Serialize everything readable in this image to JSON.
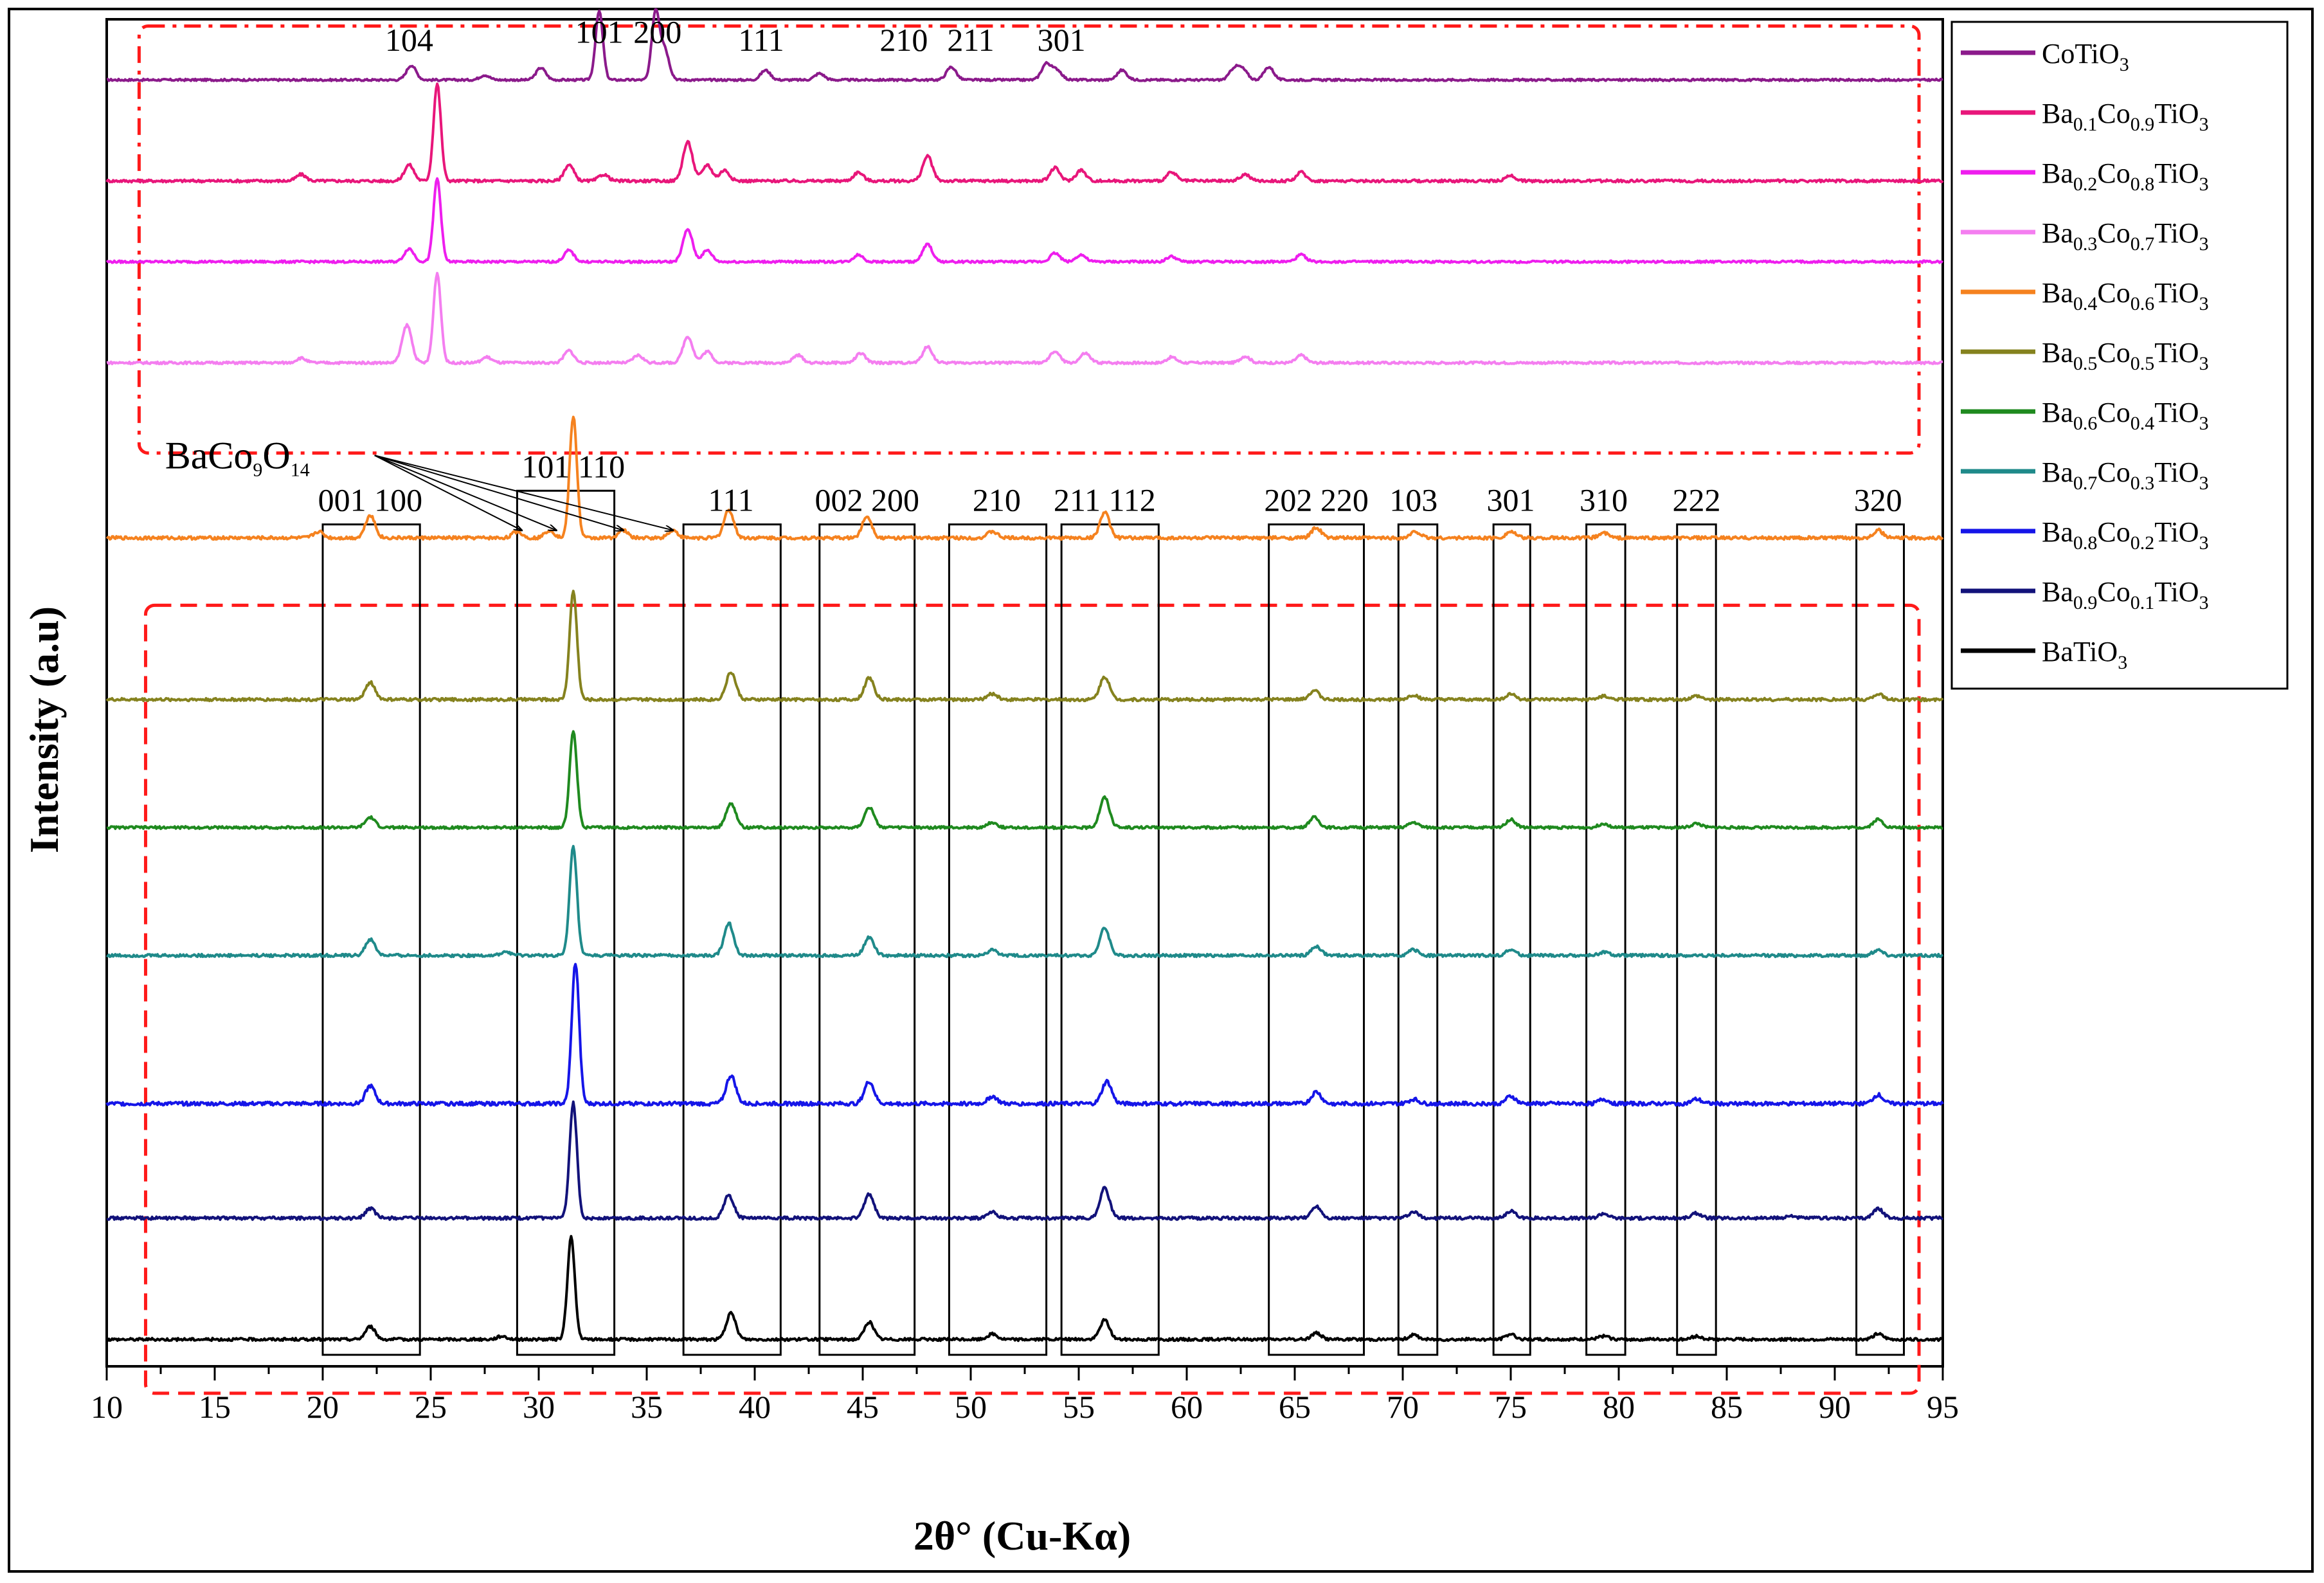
{
  "chart_data": {
    "type": "line",
    "title": "",
    "xlabel": "2θ° (Cu-Kα)",
    "ylabel": "Intensity (a.u)",
    "xlim": [
      10,
      95
    ],
    "x_ticks": [
      "10",
      "15",
      "20",
      "25",
      "30",
      "35",
      "40",
      "45",
      "50",
      "55",
      "60",
      "65",
      "70",
      "75",
      "80",
      "85",
      "90",
      "95"
    ],
    "y_ticks_shown": false,
    "legend_position": "top-right, outside plot area",
    "series": [
      {
        "name_parts": [
          [
            "CoTiO",
            ""
          ],
          [
            "3",
            "sub"
          ]
        ],
        "color": "#8b1a8b",
        "baseline_rel": 0.955,
        "scale": 0.06,
        "peaks": [
          [
            24.1,
            0.18
          ],
          [
            27.5,
            0.06
          ],
          [
            30.1,
            0.15
          ],
          [
            32.8,
            0.85
          ],
          [
            35.4,
            0.8
          ],
          [
            35.8,
            0.4
          ],
          [
            40.5,
            0.12
          ],
          [
            43.0,
            0.08
          ],
          [
            49.1,
            0.16
          ],
          [
            53.5,
            0.2
          ],
          [
            54.0,
            0.12
          ],
          [
            57.0,
            0.12
          ],
          [
            62.2,
            0.14
          ],
          [
            62.6,
            0.12
          ],
          [
            63.8,
            0.16
          ]
        ]
      },
      {
        "name_parts": [
          [
            "Ba",
            ""
          ],
          [
            "0.1",
            "sub"
          ],
          [
            "Co",
            ""
          ],
          [
            "0.9",
            "sub"
          ],
          [
            "TiO",
            ""
          ],
          [
            "3",
            "sub"
          ]
        ],
        "color": "#e8167a",
        "baseline_rel": 0.88,
        "scale": 0.08,
        "peaks": [
          [
            19.0,
            0.06
          ],
          [
            24.0,
            0.15
          ],
          [
            25.3,
            0.9
          ],
          [
            31.4,
            0.15
          ],
          [
            33.0,
            0.06
          ],
          [
            36.9,
            0.36
          ],
          [
            37.8,
            0.15
          ],
          [
            38.6,
            0.1
          ],
          [
            44.8,
            0.08
          ],
          [
            48.0,
            0.23
          ],
          [
            53.9,
            0.12
          ],
          [
            55.1,
            0.1
          ],
          [
            59.3,
            0.08
          ],
          [
            62.7,
            0.06
          ],
          [
            65.3,
            0.08
          ],
          [
            75.0,
            0.05
          ]
        ]
      },
      {
        "name_parts": [
          [
            "Ba",
            ""
          ],
          [
            "0.2",
            "sub"
          ],
          [
            "Co",
            ""
          ],
          [
            "0.8",
            "sub"
          ],
          [
            "TiO",
            ""
          ],
          [
            "3",
            "sub"
          ]
        ],
        "color": "#ee1eee",
        "baseline_rel": 0.82,
        "scale": 0.065,
        "peaks": [
          [
            24.0,
            0.15
          ],
          [
            25.3,
            0.95
          ],
          [
            31.4,
            0.13
          ],
          [
            36.9,
            0.37
          ],
          [
            37.8,
            0.13
          ],
          [
            44.8,
            0.08
          ],
          [
            48.0,
            0.2
          ],
          [
            53.9,
            0.1
          ],
          [
            55.1,
            0.08
          ],
          [
            59.3,
            0.06
          ],
          [
            65.3,
            0.08
          ]
        ]
      },
      {
        "name_parts": [
          [
            "Ba",
            ""
          ],
          [
            "0.3",
            "sub"
          ],
          [
            "Co",
            ""
          ],
          [
            "0.7",
            "sub"
          ],
          [
            "TiO",
            ""
          ],
          [
            "3",
            "sub"
          ]
        ],
        "color": "#f47ef0",
        "baseline_rel": 0.745,
        "scale": 0.07,
        "peaks": [
          [
            19.0,
            0.05
          ],
          [
            23.9,
            0.4
          ],
          [
            25.3,
            0.95
          ],
          [
            27.6,
            0.06
          ],
          [
            31.4,
            0.13
          ],
          [
            34.6,
            0.08
          ],
          [
            36.9,
            0.28
          ],
          [
            37.8,
            0.12
          ],
          [
            42.0,
            0.08
          ],
          [
            44.9,
            0.1
          ],
          [
            48.0,
            0.17
          ],
          [
            53.9,
            0.12
          ],
          [
            55.3,
            0.1
          ],
          [
            59.3,
            0.06
          ],
          [
            62.7,
            0.07
          ],
          [
            65.3,
            0.08
          ]
        ]
      },
      {
        "name_parts": [
          [
            "Ba",
            ""
          ],
          [
            "0.4",
            "sub"
          ],
          [
            "Co",
            ""
          ],
          [
            "0.6",
            "sub"
          ],
          [
            "TiO",
            ""
          ],
          [
            "3",
            "sub"
          ]
        ],
        "color": "#f5821f",
        "baseline_rel": 0.615,
        "scale": 0.095,
        "peaks": [
          [
            19.8,
            0.05
          ],
          [
            22.2,
            0.18
          ],
          [
            29.0,
            0.05
          ],
          [
            30.5,
            0.06
          ],
          [
            31.6,
            0.95
          ],
          [
            33.9,
            0.06
          ],
          [
            36.2,
            0.06
          ],
          [
            38.8,
            0.22
          ],
          [
            45.2,
            0.17
          ],
          [
            51.0,
            0.05
          ],
          [
            56.2,
            0.2
          ],
          [
            66.0,
            0.08
          ],
          [
            70.6,
            0.05
          ],
          [
            75.0,
            0.05
          ],
          [
            79.3,
            0.04
          ],
          [
            92.0,
            0.06
          ]
        ]
      },
      {
        "name_parts": [
          [
            "Ba",
            ""
          ],
          [
            "0.5",
            "sub"
          ],
          [
            "Co",
            ""
          ],
          [
            "0.5",
            "sub"
          ],
          [
            "TiO",
            ""
          ],
          [
            "3",
            "sub"
          ]
        ],
        "color": "#85821e",
        "baseline_rel": 0.495,
        "scale": 0.085,
        "peaks": [
          [
            22.2,
            0.15
          ],
          [
            31.6,
            0.95
          ],
          [
            38.9,
            0.24
          ],
          [
            45.3,
            0.19
          ],
          [
            51.0,
            0.05
          ],
          [
            56.2,
            0.2
          ],
          [
            65.9,
            0.08
          ],
          [
            70.5,
            0.04
          ],
          [
            75.0,
            0.05
          ],
          [
            79.3,
            0.03
          ],
          [
            83.6,
            0.03
          ],
          [
            92.0,
            0.05
          ]
        ]
      },
      {
        "name_parts": [
          [
            "Ba",
            ""
          ],
          [
            "0.6",
            "sub"
          ],
          [
            "Co",
            ""
          ],
          [
            "0.4",
            "sub"
          ],
          [
            "TiO",
            ""
          ],
          [
            "3",
            "sub"
          ]
        ],
        "color": "#1f8a1f",
        "baseline_rel": 0.4,
        "scale": 0.075,
        "peaks": [
          [
            22.2,
            0.1
          ],
          [
            31.6,
            0.95
          ],
          [
            38.9,
            0.24
          ],
          [
            45.3,
            0.2
          ],
          [
            51.0,
            0.05
          ],
          [
            56.2,
            0.3
          ],
          [
            65.9,
            0.1
          ],
          [
            70.5,
            0.05
          ],
          [
            75.0,
            0.08
          ],
          [
            79.3,
            0.04
          ],
          [
            83.6,
            0.04
          ],
          [
            92.0,
            0.08
          ]
        ]
      },
      {
        "name_parts": [
          [
            "Ba",
            ""
          ],
          [
            "0.7",
            "sub"
          ],
          [
            "Co",
            ""
          ],
          [
            "0.3",
            "sub"
          ],
          [
            "TiO",
            ""
          ],
          [
            "3",
            "sub"
          ]
        ],
        "color": "#1f8a8a",
        "baseline_rel": 0.305,
        "scale": 0.085,
        "peaks": [
          [
            22.2,
            0.14
          ],
          [
            28.5,
            0.03
          ],
          [
            31.6,
            0.95
          ],
          [
            38.8,
            0.28
          ],
          [
            45.3,
            0.16
          ],
          [
            51.0,
            0.05
          ],
          [
            56.2,
            0.24
          ],
          [
            66.0,
            0.08
          ],
          [
            70.5,
            0.05
          ],
          [
            75.0,
            0.05
          ],
          [
            79.3,
            0.03
          ],
          [
            92.0,
            0.05
          ]
        ]
      },
      {
        "name_parts": [
          [
            "Ba",
            ""
          ],
          [
            "0.8",
            "sub"
          ],
          [
            "Co",
            ""
          ],
          [
            "0.2",
            "sub"
          ],
          [
            "TiO",
            ""
          ],
          [
            "3",
            "sub"
          ]
        ],
        "color": "#1515e8",
        "baseline_rel": 0.195,
        "scale": 0.11,
        "peaks": [
          [
            22.2,
            0.12
          ],
          [
            31.7,
            0.95
          ],
          [
            38.9,
            0.19
          ],
          [
            45.3,
            0.15
          ],
          [
            51.0,
            0.05
          ],
          [
            56.3,
            0.15
          ],
          [
            66.0,
            0.08
          ],
          [
            70.5,
            0.03
          ],
          [
            75.0,
            0.05
          ],
          [
            79.3,
            0.03
          ],
          [
            83.6,
            0.03
          ],
          [
            92.0,
            0.06
          ]
        ]
      },
      {
        "name_parts": [
          [
            "Ba",
            ""
          ],
          [
            "0.9",
            "sub"
          ],
          [
            "Co",
            ""
          ],
          [
            "0.1",
            "sub"
          ],
          [
            "TiO",
            ""
          ],
          [
            "3",
            "sub"
          ]
        ],
        "color": "#12127a",
        "baseline_rel": 0.11,
        "scale": 0.09,
        "peaks": [
          [
            22.2,
            0.08
          ],
          [
            31.6,
            0.95
          ],
          [
            38.8,
            0.19
          ],
          [
            45.3,
            0.2
          ],
          [
            51.0,
            0.05
          ],
          [
            56.2,
            0.25
          ],
          [
            66.0,
            0.1
          ],
          [
            70.5,
            0.05
          ],
          [
            75.0,
            0.06
          ],
          [
            79.3,
            0.04
          ],
          [
            83.6,
            0.04
          ],
          [
            88.0,
            0.02
          ],
          [
            92.0,
            0.08
          ]
        ]
      },
      {
        "name_parts": [
          [
            "BaTiO",
            ""
          ],
          [
            "3",
            "sub"
          ]
        ],
        "color": "#000000",
        "baseline_rel": 0.02,
        "scale": 0.08,
        "peaks": [
          [
            22.2,
            0.12
          ],
          [
            28.3,
            0.03
          ],
          [
            31.5,
            0.95
          ],
          [
            38.9,
            0.24
          ],
          [
            45.3,
            0.16
          ],
          [
            51.0,
            0.05
          ],
          [
            56.2,
            0.18
          ],
          [
            66.0,
            0.06
          ],
          [
            70.5,
            0.04
          ],
          [
            75.0,
            0.05
          ],
          [
            79.3,
            0.03
          ],
          [
            83.6,
            0.03
          ],
          [
            92.0,
            0.05
          ]
        ]
      }
    ],
    "annotations": {
      "top_hkl": [
        {
          "text": "104",
          "x": 24.0
        },
        {
          "text": "101",
          "x": 32.8
        },
        {
          "text": "200",
          "x": 35.5
        },
        {
          "text": "111",
          "x": 40.3
        },
        {
          "text": "210",
          "x": 46.9
        },
        {
          "text": "211",
          "x": 50.0
        },
        {
          "text": "301",
          "x": 54.2
        }
      ],
      "bottom_hkl": [
        {
          "text": "001 100",
          "x": 22.2
        },
        {
          "text": "101 110",
          "x": 31.6
        },
        {
          "text": "111",
          "x": 38.9
        },
        {
          "text": "002 200",
          "x": 45.2
        },
        {
          "text": "210",
          "x": 51.2
        },
        {
          "text": "211 112",
          "x": 56.2
        },
        {
          "text": "202 220",
          "x": 66.0
        },
        {
          "text": "103",
          "x": 70.5
        },
        {
          "text": "301",
          "x": 75.0
        },
        {
          "text": "310",
          "x": 79.3
        },
        {
          "text": "222",
          "x": 83.6
        },
        {
          "text": "320",
          "x": 92.0
        }
      ],
      "impurity_label_parts": [
        [
          "BaCo",
          ""
        ],
        [
          "9",
          "sub"
        ],
        [
          "O",
          ""
        ],
        [
          "14",
          "sub"
        ]
      ],
      "impurity_arrow_targets": [
        29.2,
        30.8,
        33.9,
        36.2
      ],
      "boxes": [
        {
          "x0": 20.0,
          "x1": 24.5
        },
        {
          "x0": 29.0,
          "x1": 33.5
        },
        {
          "x0": 36.7,
          "x1": 41.2
        },
        {
          "x0": 43.0,
          "x1": 47.4
        },
        {
          "x0": 49.0,
          "x1": 53.5
        },
        {
          "x0": 54.2,
          "x1": 58.7
        },
        {
          "x0": 63.8,
          "x1": 68.2
        },
        {
          "x0": 69.8,
          "x1": 71.6
        },
        {
          "x0": 74.2,
          "x1": 75.9
        },
        {
          "x0": 78.5,
          "x1": 80.3
        },
        {
          "x0": 82.7,
          "x1": 84.5
        },
        {
          "x0": 91.0,
          "x1": 93.2
        }
      ],
      "red_regions": [
        {
          "style": "dash-dot",
          "x0": 11.5,
          "x1": 93.9,
          "y0_rel": 0.678,
          "y1_rel": 0.995
        },
        {
          "style": "dashed",
          "x0": 11.8,
          "x1": 93.9,
          "y0_rel": -0.02,
          "y1_rel": 0.565
        }
      ]
    }
  }
}
